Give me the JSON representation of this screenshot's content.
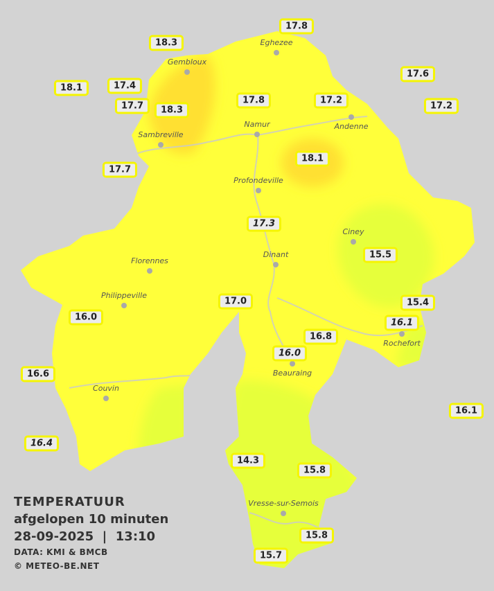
{
  "colors": {
    "background": "#d3d3d3",
    "temp_17_18": "#ffff3a",
    "temp_18_plus": "#ffe030",
    "temp_15_16": "#e6ff3a",
    "badge_border": "#f5f500"
  },
  "legend": {
    "title": "TEMPERATUUR",
    "subtitle": "afgelopen 10 minuten",
    "datetime": "28-09-2025  |  13:10",
    "source": "DATA: KMI & BMCB",
    "copyright": "© METEO-BE.NET"
  },
  "cities": [
    "Eghezee",
    "Gembloux",
    "Andenne",
    "Namur",
    "Sambreville",
    "Profondeville",
    "Ciney",
    "Dinant",
    "Florennes",
    "Philippeville",
    "Couvin",
    "Vresse-sur-Semois",
    "Beauraing",
    "Rochefort"
  ],
  "stations": [
    {
      "value": "18.3",
      "italic": false
    },
    {
      "value": "17.8",
      "italic": false
    },
    {
      "value": "17.6",
      "italic": false
    },
    {
      "value": "18.1",
      "italic": false
    },
    {
      "value": "17.4",
      "italic": false
    },
    {
      "value": "17.7",
      "italic": false
    },
    {
      "value": "18.3",
      "italic": false
    },
    {
      "value": "17.8",
      "italic": false
    },
    {
      "value": "17.2",
      "italic": false
    },
    {
      "value": "17.2",
      "italic": false
    },
    {
      "value": "18.1",
      "italic": false
    },
    {
      "value": "17.7",
      "italic": false
    },
    {
      "value": "17.3",
      "italic": true
    },
    {
      "value": "15.5",
      "italic": false
    },
    {
      "value": "17.0",
      "italic": false
    },
    {
      "value": "15.4",
      "italic": false
    },
    {
      "value": "16.1",
      "italic": true
    },
    {
      "value": "16.0",
      "italic": false
    },
    {
      "value": "16.8",
      "italic": false
    },
    {
      "value": "16.0",
      "italic": true
    },
    {
      "value": "16.6",
      "italic": false
    },
    {
      "value": "16.1",
      "italic": false
    },
    {
      "value": "16.4",
      "italic": true
    },
    {
      "value": "14.3",
      "italic": false
    },
    {
      "value": "15.8",
      "italic": false
    },
    {
      "value": "15.8",
      "italic": false
    },
    {
      "value": "15.7",
      "italic": false
    }
  ]
}
